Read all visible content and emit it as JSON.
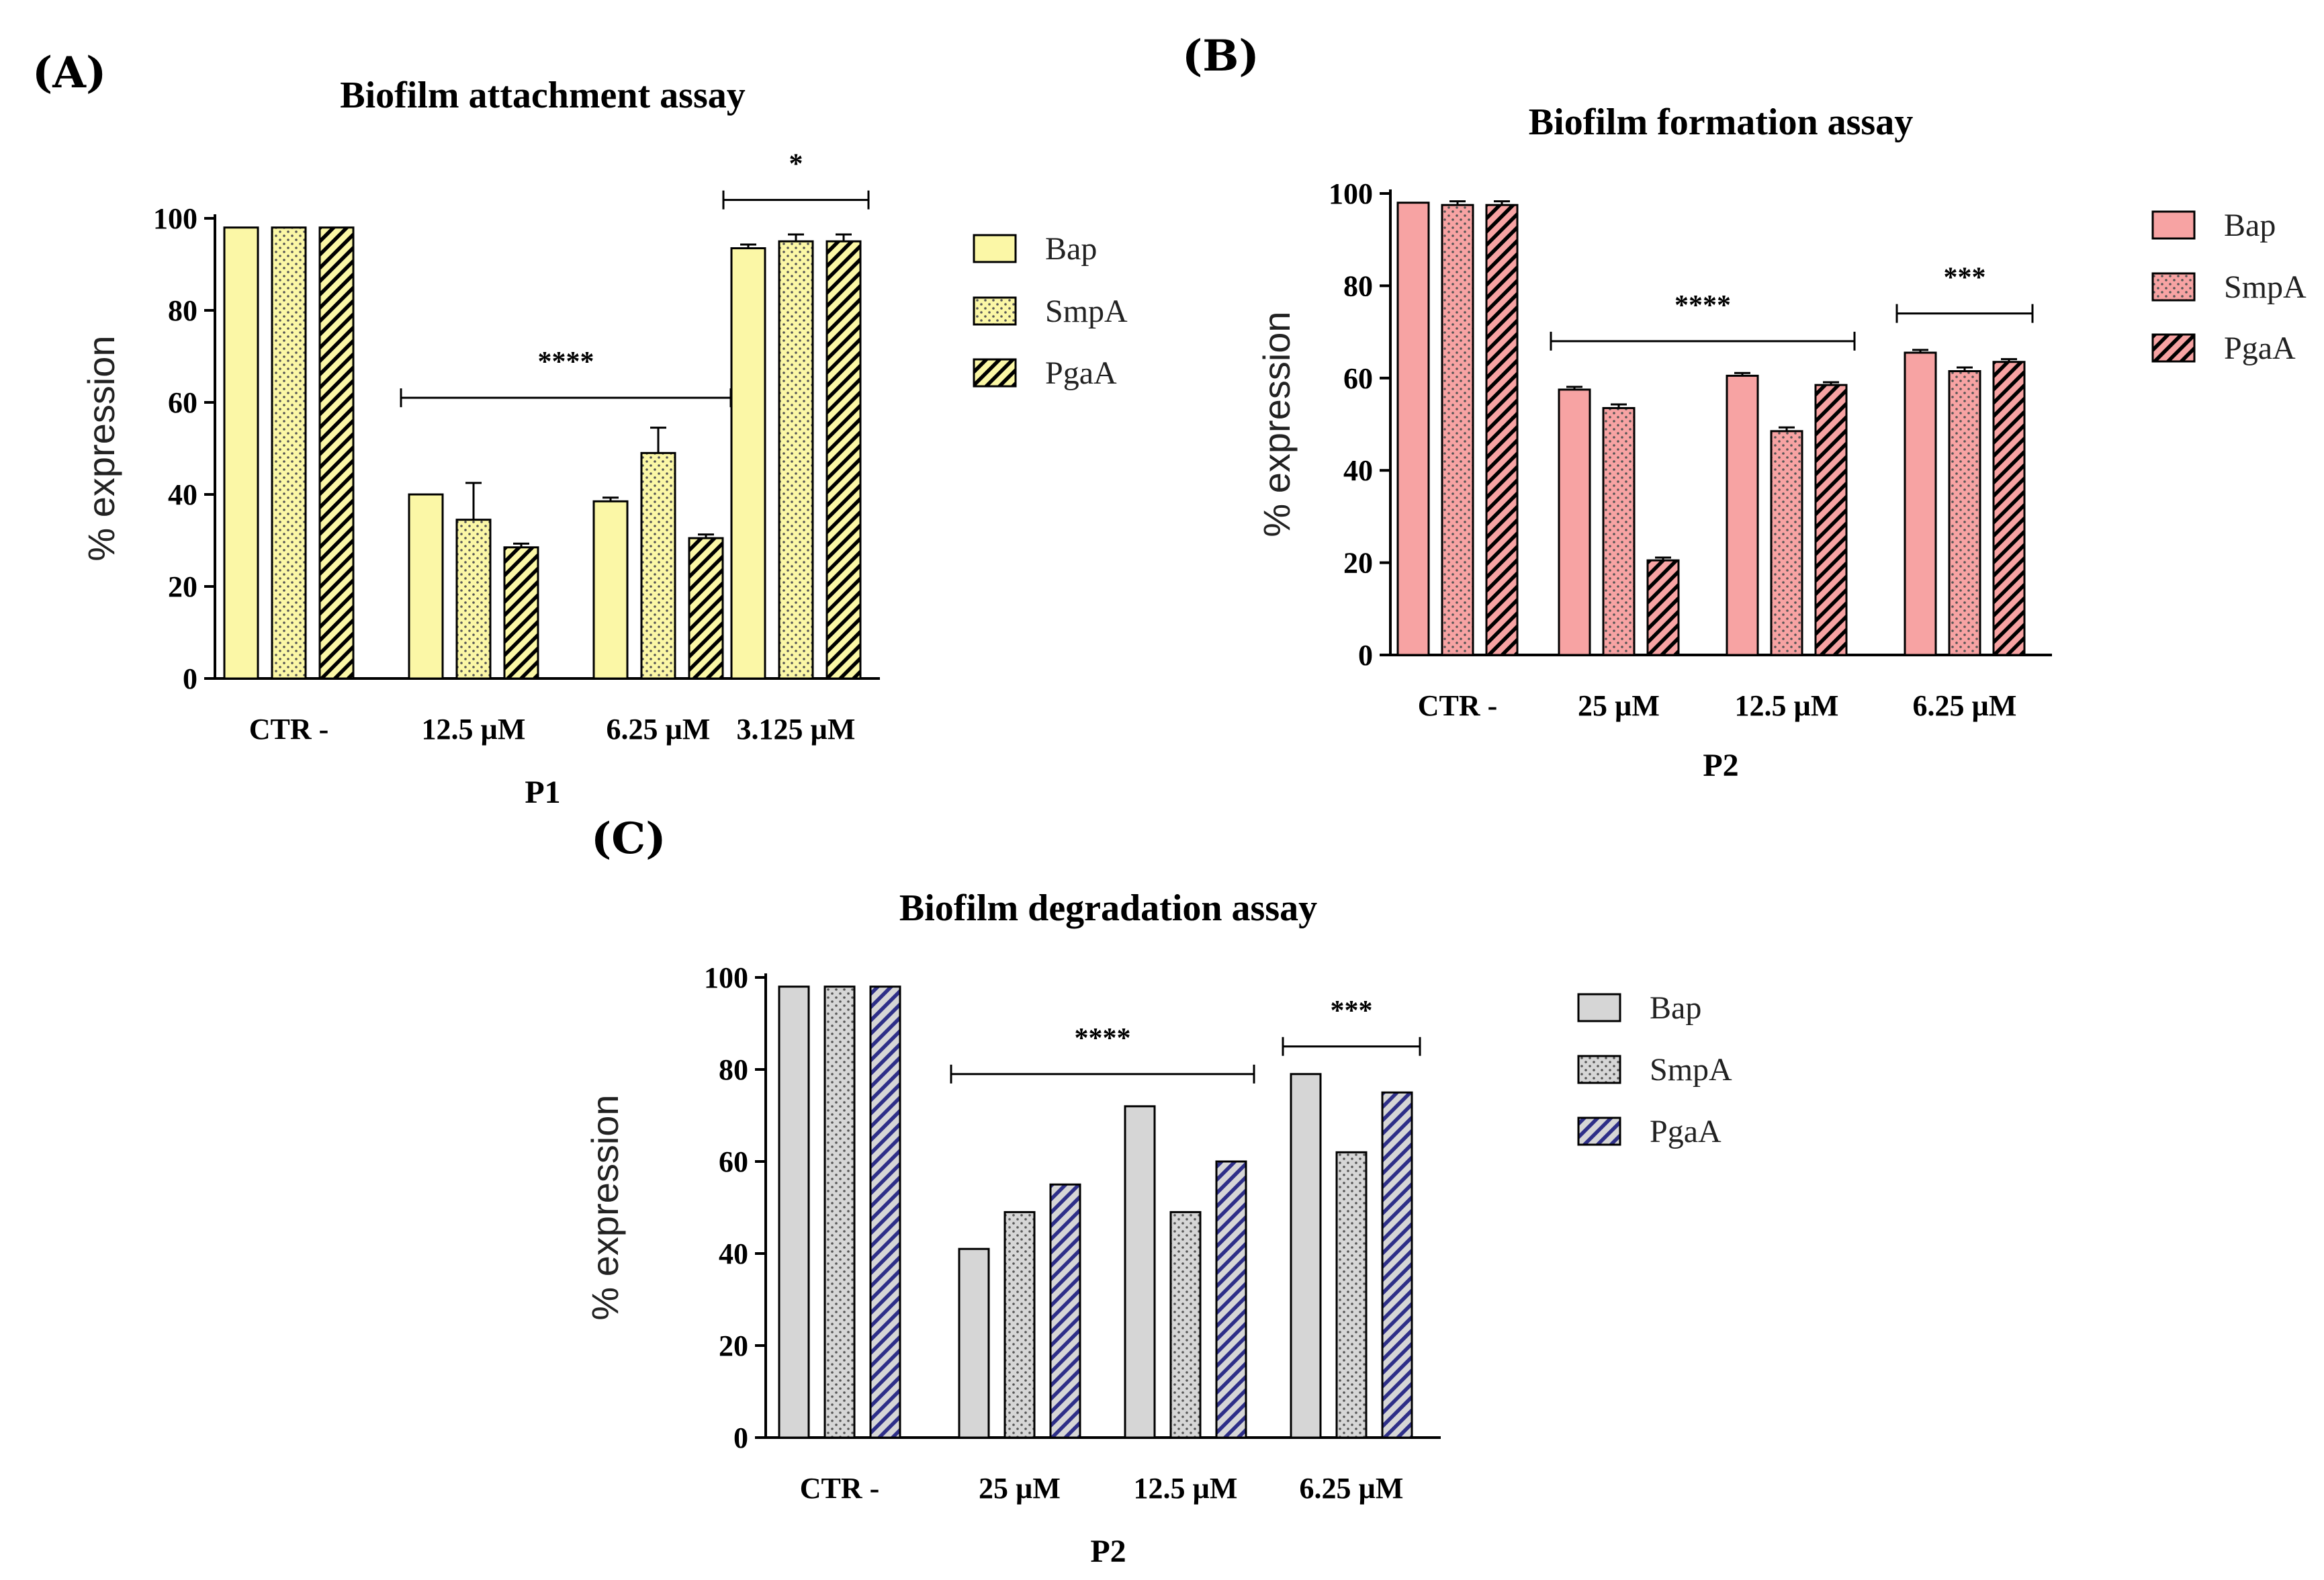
{
  "colors": {
    "axis": "#000000",
    "A_fill": "#fbf7a6",
    "B_fill": "#f7a3a3",
    "C_fill": "#d6d6d6",
    "C_pgaa_stripe": "#2e2f88",
    "dots_dark": "#555555"
  },
  "chart_data": [
    {
      "id": "A",
      "panel_label": "(A)",
      "type": "bar",
      "title": "Biofilm attachment assay",
      "xlabel": "P1",
      "ylabel": "% expression",
      "ylim": [
        0,
        100
      ],
      "yticks": [
        "0",
        "20",
        "40",
        "60",
        "80",
        "100"
      ],
      "categories": [
        "CTR -",
        "12.5 µM",
        "6.25 µM",
        "3.125 µM"
      ],
      "series": [
        {
          "name": "Bap",
          "pattern": "solid",
          "values": [
            98,
            40,
            38.5,
            93.5
          ],
          "errors": [
            0,
            0,
            0.8,
            0.8
          ]
        },
        {
          "name": "SmpA",
          "pattern": "dots",
          "values": [
            98,
            34.5,
            49,
            95
          ],
          "errors": [
            0,
            8,
            5.5,
            1.5
          ]
        },
        {
          "name": "PgaA",
          "pattern": "stripes",
          "values": [
            98,
            28.5,
            30.5,
            95
          ],
          "errors": [
            0,
            0.8,
            0.8,
            1.5
          ]
        }
      ],
      "significance": [
        {
          "label": "****",
          "from_category": 1,
          "to_category": 2,
          "y": 61
        },
        {
          "label": "*",
          "from_category": 3,
          "to_category": 3,
          "y": 104
        }
      ],
      "legend_position": "right"
    },
    {
      "id": "B",
      "panel_label": "(B)",
      "type": "bar",
      "title": "Biofilm formation assay",
      "xlabel": "P2",
      "ylabel": "% expression",
      "ylim": [
        0,
        100
      ],
      "yticks": [
        "0",
        "20",
        "40",
        "60",
        "80",
        "100"
      ],
      "categories": [
        "CTR -",
        "25 µM",
        "12.5 µM",
        "6.25 µM"
      ],
      "series": [
        {
          "name": "Bap",
          "pattern": "solid",
          "values": [
            98,
            57.5,
            60.5,
            65.5
          ],
          "errors": [
            0,
            0.6,
            0.6,
            0.6
          ]
        },
        {
          "name": "SmpA",
          "pattern": "dots",
          "values": [
            97.5,
            53.5,
            48.5,
            61.5
          ],
          "errors": [
            0.8,
            0.8,
            0.8,
            0.8
          ]
        },
        {
          "name": "PgaA",
          "pattern": "stripes",
          "values": [
            97.5,
            20.5,
            58.5,
            63.5
          ],
          "errors": [
            0.8,
            0.6,
            0.6,
            0.6
          ]
        }
      ],
      "significance": [
        {
          "label": "****",
          "from_category": 1,
          "to_category": 2,
          "y": 68
        },
        {
          "label": "***",
          "from_category": 3,
          "to_category": 3,
          "y": 74
        }
      ],
      "legend_position": "right"
    },
    {
      "id": "C",
      "panel_label": "(C)",
      "type": "bar",
      "title": "Biofilm degradation assay",
      "xlabel": "P2",
      "ylabel": "% expression",
      "ylim": [
        0,
        100
      ],
      "yticks": [
        "0",
        "20",
        "40",
        "60",
        "80",
        "100"
      ],
      "categories": [
        "CTR -",
        "25 µM",
        "12.5 µM",
        "6.25 µM"
      ],
      "series": [
        {
          "name": "Bap",
          "pattern": "solid",
          "values": [
            98,
            41,
            72,
            79
          ],
          "errors": [
            0,
            0,
            0,
            0
          ]
        },
        {
          "name": "SmpA",
          "pattern": "dots",
          "values": [
            98,
            49,
            49,
            62
          ],
          "errors": [
            0,
            0,
            0,
            0
          ]
        },
        {
          "name": "PgaA",
          "pattern": "stripes",
          "values": [
            98,
            55,
            60,
            75
          ],
          "errors": [
            0,
            0,
            0,
            0
          ]
        }
      ],
      "significance": [
        {
          "label": "****",
          "from_category": 1,
          "to_category": 2,
          "y": 79
        },
        {
          "label": "***",
          "from_category": 3,
          "to_category": 3,
          "y": 85
        }
      ],
      "legend_position": "right"
    }
  ]
}
